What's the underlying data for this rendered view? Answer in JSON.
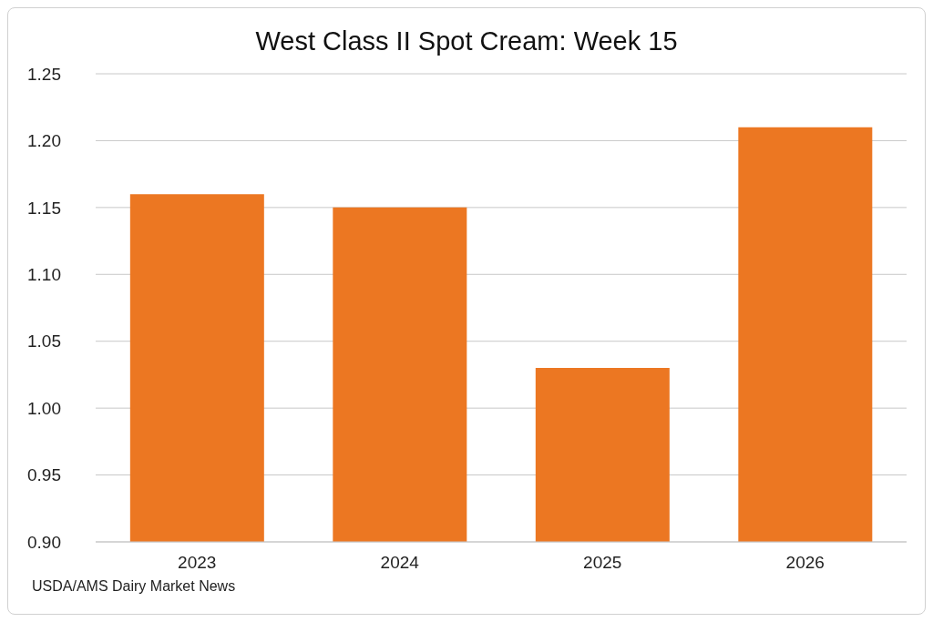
{
  "chart_data": {
    "type": "bar",
    "title": "West Class II Spot Cream: Week 15",
    "categories": [
      "2023",
      "2024",
      "2025",
      "2026"
    ],
    "values": [
      1.16,
      1.15,
      1.03,
      1.21
    ],
    "color": "#ec7722",
    "ylim": [
      0.9,
      1.25
    ],
    "yticks": [
      {
        "value": 0.9,
        "label": "0.90"
      },
      {
        "value": 0.95,
        "label": "0.95"
      },
      {
        "value": 1,
        "label": "1.00"
      },
      {
        "value": 1.05,
        "label": "1.05"
      },
      {
        "value": 1.1,
        "label": "1.10"
      },
      {
        "value": 1.15,
        "label": "1.15"
      },
      {
        "value": 1.2,
        "label": "1.20"
      },
      {
        "value": 1.25,
        "label": "1.25"
      }
    ],
    "grid": "y",
    "annotations": [
      "USDA/AMS Dairy Market News"
    ]
  }
}
